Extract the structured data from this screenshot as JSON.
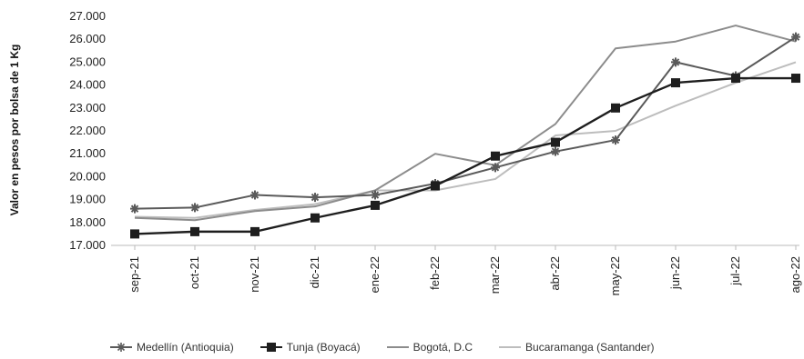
{
  "chart_data": {
    "type": "line",
    "title": "",
    "xlabel": "",
    "ylabel": "Valor en pesos por bolsa de 1 Kg",
    "categories": [
      "sep-21",
      "oct-21",
      "nov-21",
      "dic-21",
      "ene-22",
      "feb-22",
      "mar-22",
      "abr-22",
      "may-22",
      "jun-22",
      "jul-22",
      "ago-22"
    ],
    "ylim": [
      17000,
      27000
    ],
    "yticks": [
      17000,
      18000,
      19000,
      20000,
      21000,
      22000,
      23000,
      24000,
      25000,
      26000,
      27000
    ],
    "ytick_labels": [
      "17.000",
      "18.000",
      "19.000",
      "20.000",
      "21.000",
      "22.000",
      "23.000",
      "24.000",
      "25.000",
      "26.000",
      "27.000"
    ],
    "grid": false,
    "legend_position": "bottom",
    "series": [
      {
        "name": "Medellín (Antioquia)",
        "color": "#5a5a5a",
        "marker": "star",
        "values": [
          18600,
          18650,
          19200,
          19100,
          19200,
          19700,
          20400,
          21100,
          21600,
          25000,
          24400,
          26100
        ]
      },
      {
        "name": "Tunja (Boyacá)",
        "color": "#1e1e1e",
        "marker": "square",
        "values": [
          17500,
          17600,
          17600,
          18200,
          18750,
          19600,
          20900,
          21500,
          23000,
          24100,
          24300,
          24300
        ]
      },
      {
        "name": "Bogotá, D.C",
        "color": "#8c8c8c",
        "marker": "none",
        "values": [
          18200,
          18100,
          18500,
          18700,
          19400,
          21000,
          20500,
          22300,
          25600,
          25900,
          26600,
          25900
        ]
      },
      {
        "name": "Bucaramanga (Santander)",
        "color": "#bdbdbd",
        "marker": "none",
        "values": [
          18250,
          18200,
          18550,
          18800,
          19400,
          19400,
          19900,
          21800,
          22000,
          23100,
          24100,
          25000
        ]
      }
    ]
  }
}
